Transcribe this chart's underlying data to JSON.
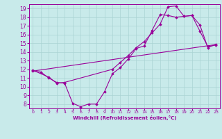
{
  "background_color": "#c8eaea",
  "grid_color": "#aad4d4",
  "line_color": "#990099",
  "marker_color": "#990099",
  "xlabel": "Windchill (Refroidissement éolien,°C)",
  "xlim": [
    -0.5,
    23.5
  ],
  "ylim": [
    7.5,
    19.5
  ],
  "yticks": [
    8,
    9,
    10,
    11,
    12,
    13,
    14,
    15,
    16,
    17,
    18,
    19
  ],
  "xticks": [
    0,
    1,
    2,
    3,
    4,
    5,
    6,
    7,
    8,
    9,
    10,
    11,
    12,
    13,
    14,
    15,
    16,
    17,
    18,
    19,
    20,
    21,
    22,
    23
  ],
  "line1_x": [
    0,
    1,
    2,
    3,
    4,
    5,
    6,
    7,
    8,
    9,
    10,
    11,
    12,
    13,
    14,
    15,
    16,
    17,
    18,
    19,
    20,
    21,
    22,
    23
  ],
  "line1_y": [
    11.8,
    11.7,
    11.0,
    10.5,
    10.4,
    8.1,
    7.7,
    8.0,
    8.0,
    9.4,
    11.5,
    12.2,
    13.2,
    14.4,
    14.7,
    16.5,
    18.3,
    18.2,
    18.0,
    18.1,
    18.2,
    16.4,
    14.6,
    14.8
  ],
  "line2_x": [
    0,
    2,
    3,
    4,
    10,
    11,
    12,
    13,
    14,
    15,
    16,
    17,
    18,
    19,
    20,
    21,
    22,
    23
  ],
  "line2_y": [
    11.9,
    11.1,
    10.4,
    10.5,
    12.0,
    12.8,
    13.6,
    14.5,
    15.2,
    16.2,
    17.2,
    19.2,
    19.3,
    18.1,
    18.2,
    17.1,
    14.5,
    14.9
  ],
  "line3_x": [
    0,
    23
  ],
  "line3_y": [
    11.8,
    14.85
  ],
  "figsize": [
    3.2,
    2.0
  ],
  "dpi": 100
}
